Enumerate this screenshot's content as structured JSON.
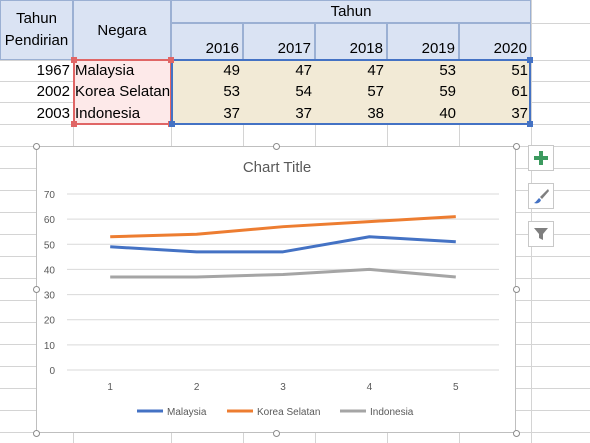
{
  "table": {
    "header_founded": "Tahun Pendirian",
    "header_country": "Negara",
    "header_years_group": "Tahun",
    "years": [
      "2016",
      "2017",
      "2018",
      "2019",
      "2020"
    ],
    "rows": [
      {
        "founded": "1967",
        "country": "Malaysia",
        "values": [
          "49",
          "47",
          "47",
          "53",
          "51"
        ]
      },
      {
        "founded": "2002",
        "country": "Korea Selatan",
        "values": [
          "53",
          "54",
          "57",
          "59",
          "61"
        ]
      },
      {
        "founded": "2003",
        "country": "Indonesia",
        "values": [
          "37",
          "37",
          "38",
          "40",
          "37"
        ]
      }
    ]
  },
  "chart_data": {
    "type": "line",
    "title": "Chart Title",
    "x": [
      "1",
      "2",
      "3",
      "4",
      "5"
    ],
    "ylim": [
      0,
      70
    ],
    "yticks": [
      "0",
      "10",
      "20",
      "30",
      "40",
      "50",
      "60",
      "70"
    ],
    "grid": true,
    "legend_position": "bottom",
    "series": [
      {
        "name": "Malaysia",
        "values": [
          49,
          47,
          47,
          53,
          51
        ],
        "color": "#4472c4"
      },
      {
        "name": "Korea Selatan",
        "values": [
          53,
          54,
          57,
          59,
          61
        ],
        "color": "#ed7d31"
      },
      {
        "name": "Indonesia",
        "values": [
          37,
          37,
          38,
          40,
          37
        ],
        "color": "#a5a5a5"
      }
    ]
  },
  "chart_tools": {
    "add_element_icon": "plus-icon",
    "style_icon": "paintbrush-icon",
    "filter_icon": "funnel-icon"
  },
  "colors": {
    "header_fill": "#dae3f3",
    "name_range_fill": "#fde9e9",
    "value_range_fill": "#f2ead6",
    "name_range_border": "#e06666",
    "value_range_border": "#4472c4"
  }
}
